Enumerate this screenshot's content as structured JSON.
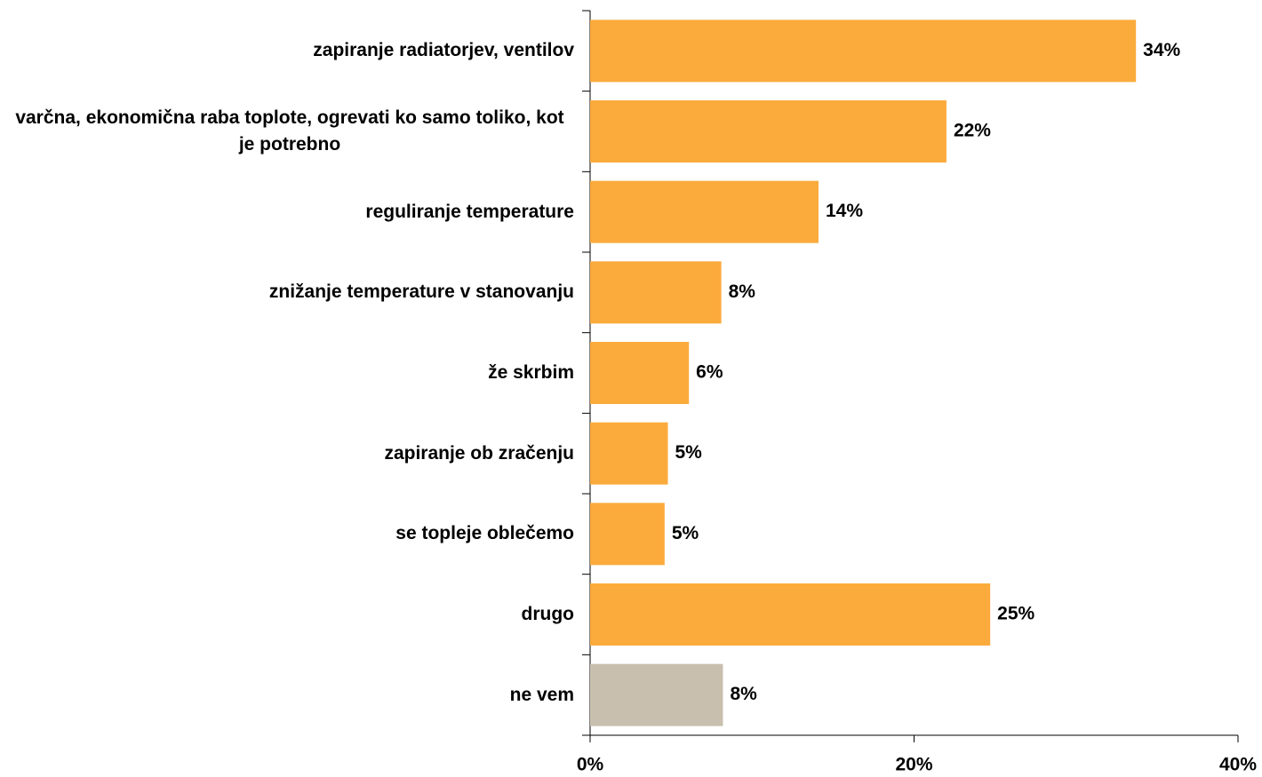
{
  "chart_data": {
    "type": "bar",
    "orientation": "horizontal",
    "categories": [
      "zapiranje radiatorjev, ventilov",
      "varčna, ekonomična raba toplote, ogrevati ko samo toliko, kot je potrebno",
      "reguliranje temperature",
      "znižanje temperature v stanovanju",
      "že skrbim",
      "zapiranje ob zračenju",
      "se topleje oblečemo",
      "drugo",
      "ne vem"
    ],
    "values": [
      33.7,
      22.0,
      14.1,
      8.1,
      6.1,
      4.8,
      4.6,
      24.7,
      8.2
    ],
    "value_labels": [
      "34%",
      "22%",
      "14%",
      "8%",
      "6%",
      "5%",
      "5%",
      "25%",
      "8%"
    ],
    "colors": [
      "#FBAB3C",
      "#FBAB3C",
      "#FBAB3C",
      "#FBAB3C",
      "#FBAB3C",
      "#FBAB3C",
      "#FBAB3C",
      "#FBAB3C",
      "#C9BFAF"
    ],
    "xlim": [
      0,
      40
    ],
    "xticks": [
      {
        "value": 0,
        "label": "0%"
      },
      {
        "value": 20,
        "label": "20%"
      },
      {
        "value": 40,
        "label": "40%"
      }
    ],
    "grid": false
  }
}
